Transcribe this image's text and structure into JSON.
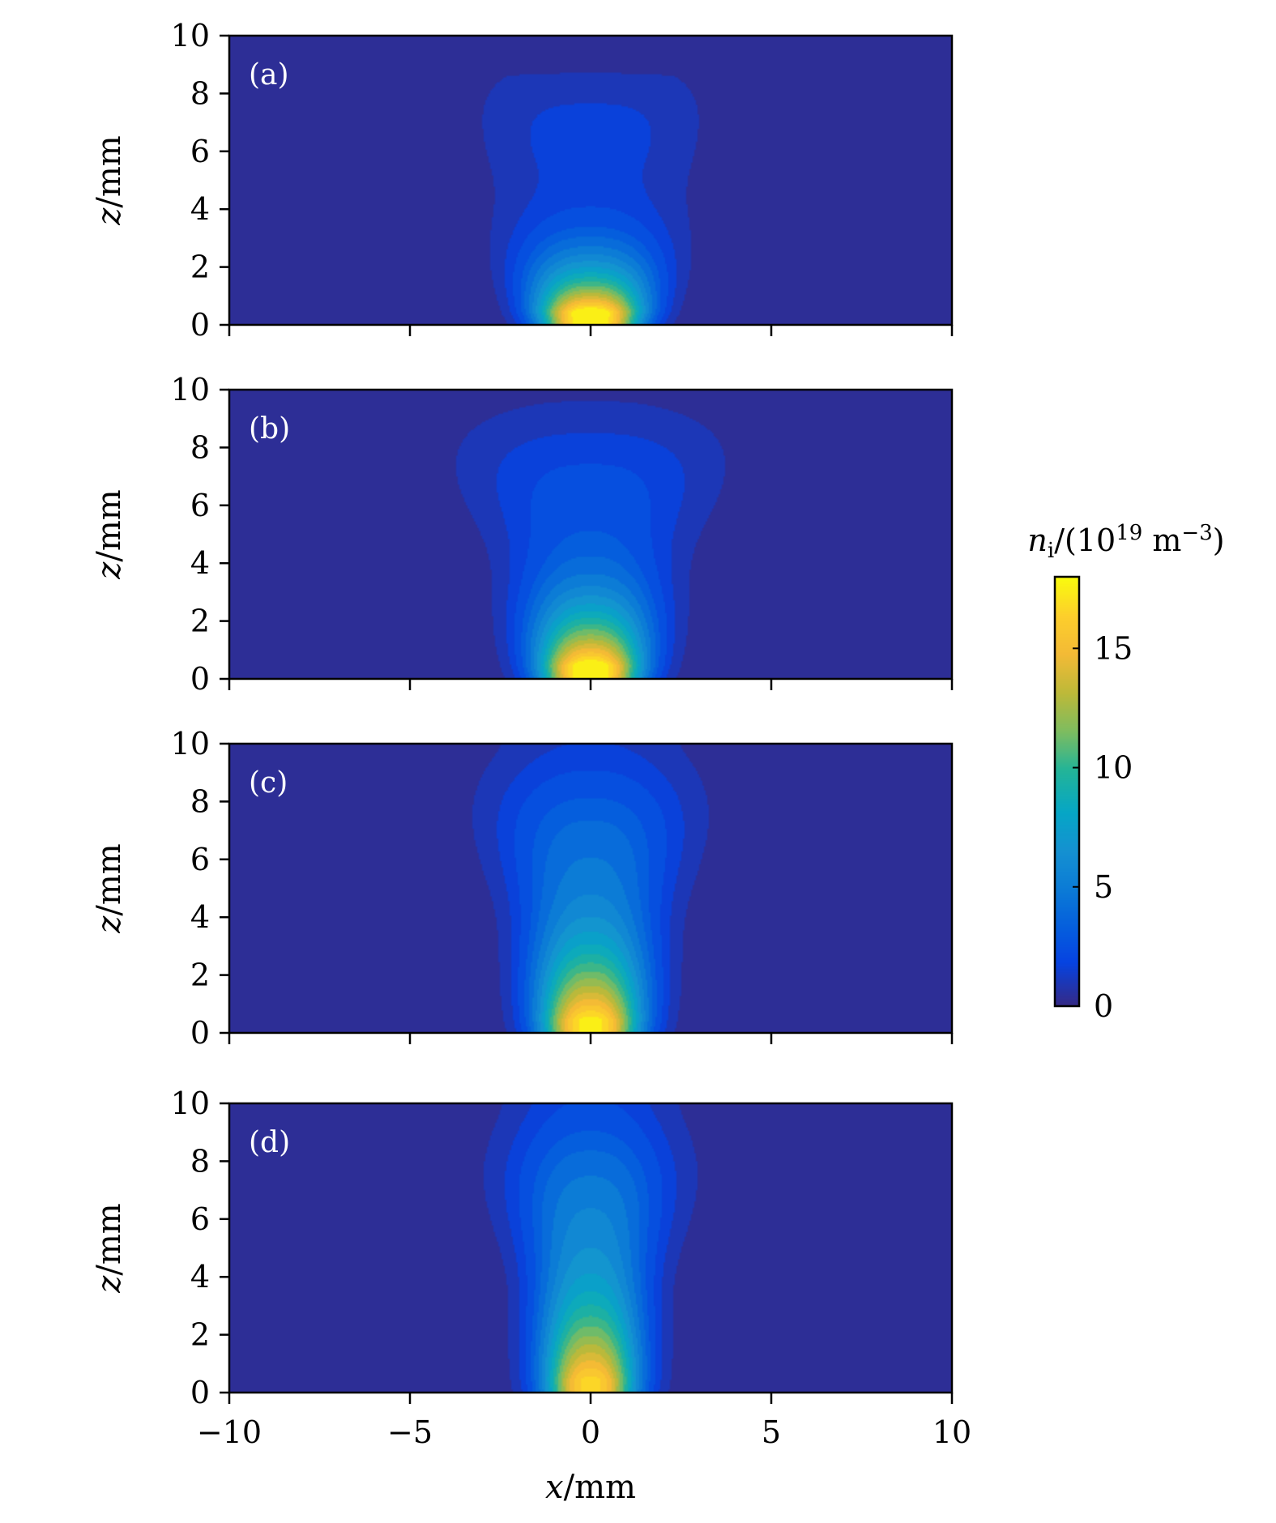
{
  "chart_data": {
    "type": "heatmap",
    "subtype": "filled-contour",
    "colormap": "parula",
    "panels": [
      {
        "label": "(a)",
        "center_z": 0.45,
        "peak": 17.5,
        "width_x": 1.3,
        "decay_z": 1.6,
        "outer_halfwidth_z0": 2.0,
        "outer_halfwidth_top": 3.5,
        "outer_top_z": 8.6
      },
      {
        "label": "(b)",
        "center_z": 0.45,
        "peak": 17.5,
        "width_x": 1.3,
        "decay_z": 2.3,
        "outer_halfwidth_z0": 2.2,
        "outer_halfwidth_top": 4.5,
        "outer_top_z": 10
      },
      {
        "label": "(c)",
        "center_z": 0.45,
        "peak": 16.5,
        "width_x": 1.3,
        "decay_z": 3.6,
        "outer_halfwidth_z0": 2.1,
        "outer_halfwidth_top": 3.6,
        "outer_top_z": 10
      },
      {
        "label": "(d)",
        "center_z": 0.45,
        "peak": 15.5,
        "width_x": 1.2,
        "decay_z": 4.6,
        "outer_halfwidth_z0": 2.0,
        "outer_halfwidth_top": 3.3,
        "outer_top_z": 10
      }
    ],
    "x_range": [
      -10,
      10
    ],
    "z_range": [
      0,
      10
    ],
    "x_ticks": [
      -10,
      -5,
      0,
      5,
      10
    ],
    "z_ticks": [
      0,
      2,
      4,
      6,
      8,
      10
    ],
    "x_tick_labels": [
      "−10",
      "−5",
      "0",
      "5",
      "10"
    ],
    "z_tick_labels": [
      "0",
      "2",
      "4",
      "6",
      "8",
      "10"
    ],
    "xlabel_var": "x",
    "xlabel_unit": "/mm",
    "ylabel_var": "z",
    "ylabel_unit": "/mm",
    "colorbar": {
      "title_var": "n",
      "title_sub": "i",
      "title_rest": "/(10",
      "title_exp": "19",
      "title_unit": " m",
      "title_unit_exp": "−3",
      "title_close": ")",
      "range": [
        0,
        18
      ],
      "ticks": [
        0,
        5,
        10,
        15
      ],
      "tick_labels": [
        "0",
        "5",
        "10",
        "15"
      ]
    },
    "contour_levels": [
      0.6,
      1.3,
      2,
      2.9,
      3.6,
      4.5,
      5.4,
      6.3,
      7.2,
      8.1,
      9,
      9.9,
      10.8,
      11.7,
      12.6,
      13.5,
      14.4,
      15.3,
      16.2,
      17.1
    ]
  }
}
